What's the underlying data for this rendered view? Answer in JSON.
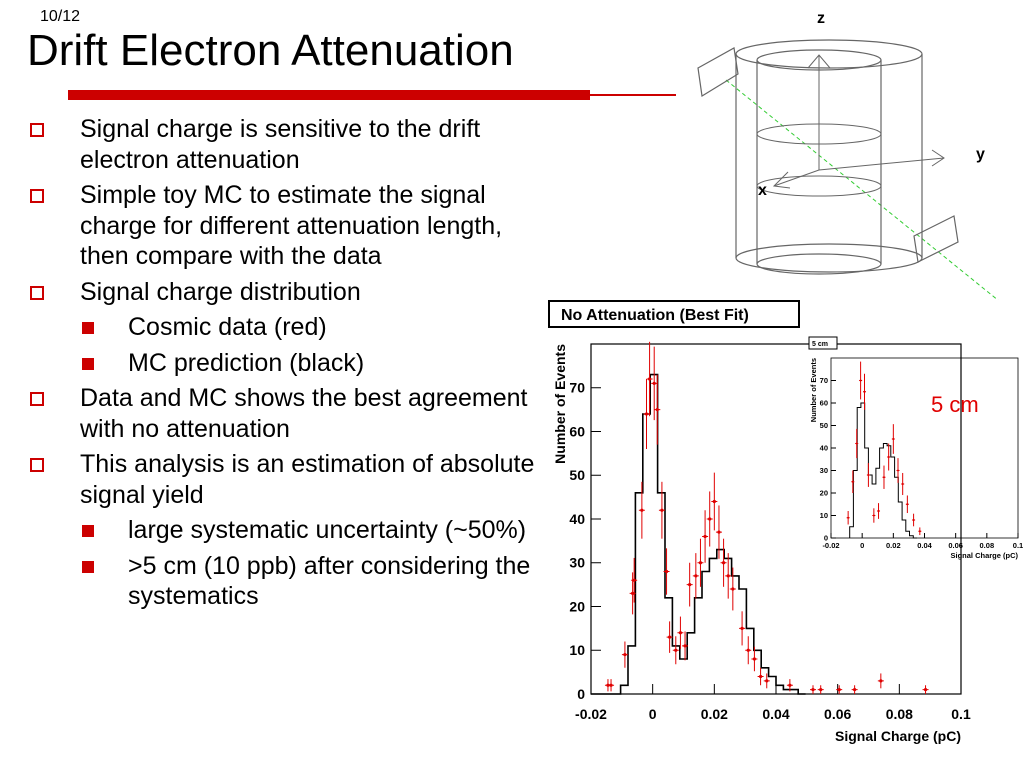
{
  "slide": {
    "page_number": "10/12",
    "title": "Drift Electron Attenuation",
    "bullets": [
      {
        "level": 1,
        "text": "Signal charge is sensitive to the drift electron attenuation"
      },
      {
        "level": 1,
        "text": "Simple toy MC to estimate the signal charge for different attenuation length, then compare with the data"
      },
      {
        "level": 1,
        "text": "Signal charge distribution"
      },
      {
        "level": 2,
        "text": "Cosmic data (red)"
      },
      {
        "level": 2,
        "text": "MC prediction (black)"
      },
      {
        "level": 1,
        "text": "Data and MC shows the best agreement with no attenuation"
      },
      {
        "level": 1,
        "text": "This analysis is an estimation of absolute signal yield"
      },
      {
        "level": 2,
        "text": "large systematic uncertainty (~50%)"
      },
      {
        "level": 2,
        "text": ">5 cm (10 ppb) after considering the systematics"
      }
    ]
  },
  "detector_diagram": {
    "axis_labels": {
      "z": "z",
      "y": "y",
      "x": "x"
    }
  },
  "inset_caption": "5 cm",
  "colors": {
    "accent": "#cc0000",
    "data": "#e00000",
    "mc": "#000000"
  },
  "chart_data": [
    {
      "type": "histogram",
      "title": "No Attenuation (Best Fit)",
      "xlabel": "Signal Charge (pC)",
      "ylabel": "Number of Events",
      "xlim": [
        -0.02,
        0.1
      ],
      "ylim": [
        0,
        80
      ],
      "xticks": [
        "-0.02",
        "0",
        "0.02",
        "0.04",
        "0.06",
        "0.08",
        "0.1"
      ],
      "yticks": [
        "0",
        "10",
        "20",
        "30",
        "40",
        "50",
        "60",
        "70"
      ],
      "grid": false,
      "series": [
        {
          "name": "MC",
          "color": "#000000",
          "style": "step",
          "bin_edges": [
            -0.02,
            -0.0176,
            -0.0152,
            -0.0128,
            -0.0104,
            -0.008,
            -0.0056,
            -0.0032,
            -0.0008,
            0.0016,
            0.004,
            0.0064,
            0.0088,
            0.0112,
            0.0136,
            0.016,
            0.0184,
            0.0208,
            0.0232,
            0.0256,
            0.028,
            0.0304,
            0.0328,
            0.0352,
            0.0376,
            0.04,
            0.0424,
            0.0448,
            0.0472,
            0.0496
          ],
          "values": [
            0,
            0,
            0,
            0,
            2,
            11,
            46,
            64,
            73,
            46,
            22,
            11,
            8,
            14,
            22,
            28,
            31,
            33,
            31,
            27,
            24,
            15,
            10,
            6,
            4,
            2,
            1,
            1,
            0
          ]
        },
        {
          "name": "Cosmic data",
          "color": "#e00000",
          "style": "errorbar",
          "points": [
            {
              "x": -0.0145,
              "y": 2,
              "err": 1.4
            },
            {
              "x": -0.0135,
              "y": 2,
              "err": 1.4
            },
            {
              "x": -0.009,
              "y": 9,
              "err": 3
            },
            {
              "x": -0.0065,
              "y": 23,
              "err": 4.8
            },
            {
              "x": -0.006,
              "y": 26,
              "err": 5.1
            },
            {
              "x": -0.0035,
              "y": 42,
              "err": 6.5
            },
            {
              "x": -0.002,
              "y": 64,
              "err": 8
            },
            {
              "x": -0.001,
              "y": 72,
              "err": 8.5
            },
            {
              "x": 0.0005,
              "y": 71,
              "err": 8.4
            },
            {
              "x": 0.0015,
              "y": 65,
              "err": 8
            },
            {
              "x": 0.003,
              "y": 42,
              "err": 6.5
            },
            {
              "x": 0.0045,
              "y": 28,
              "err": 5.3
            },
            {
              "x": 0.0055,
              "y": 13,
              "err": 3.6
            },
            {
              "x": 0.0075,
              "y": 10,
              "err": 3.2
            },
            {
              "x": 0.009,
              "y": 14,
              "err": 3.7
            },
            {
              "x": 0.0105,
              "y": 11,
              "err": 3.3
            },
            {
              "x": 0.012,
              "y": 25,
              "err": 5
            },
            {
              "x": 0.014,
              "y": 27,
              "err": 5.2
            },
            {
              "x": 0.0155,
              "y": 30,
              "err": 5.5
            },
            {
              "x": 0.017,
              "y": 36,
              "err": 6
            },
            {
              "x": 0.0185,
              "y": 40,
              "err": 6.3
            },
            {
              "x": 0.02,
              "y": 44,
              "err": 6.6
            },
            {
              "x": 0.0215,
              "y": 37,
              "err": 6.1
            },
            {
              "x": 0.023,
              "y": 30,
              "err": 5.5
            },
            {
              "x": 0.0245,
              "y": 27,
              "err": 5.2
            },
            {
              "x": 0.026,
              "y": 24,
              "err": 4.9
            },
            {
              "x": 0.029,
              "y": 15,
              "err": 3.9
            },
            {
              "x": 0.031,
              "y": 10,
              "err": 3.2
            },
            {
              "x": 0.033,
              "y": 8,
              "err": 2.8
            },
            {
              "x": 0.035,
              "y": 4,
              "err": 2
            },
            {
              "x": 0.037,
              "y": 3,
              "err": 1.7
            },
            {
              "x": 0.0445,
              "y": 2,
              "err": 1.4
            },
            {
              "x": 0.052,
              "y": 1,
              "err": 1
            },
            {
              "x": 0.0545,
              "y": 1,
              "err": 1
            },
            {
              "x": 0.0605,
              "y": 1,
              "err": 1
            },
            {
              "x": 0.0655,
              "y": 1,
              "err": 1
            },
            {
              "x": 0.074,
              "y": 3,
              "err": 1.7
            },
            {
              "x": 0.0885,
              "y": 1,
              "err": 1
            }
          ]
        }
      ]
    },
    {
      "type": "histogram",
      "title": "5 cm",
      "xlabel": "Signal Charge (pC)",
      "ylabel": "Number of Events",
      "xlim": [
        -0.02,
        0.1
      ],
      "ylim": [
        0,
        80
      ],
      "xticks": [
        "-0.02",
        "0",
        "0.02",
        "0.04",
        "0.06",
        "0.08",
        "0.1"
      ],
      "yticks": [
        "0",
        "10",
        "20",
        "30",
        "40",
        "50",
        "60",
        "70"
      ],
      "grid": false,
      "series": [
        {
          "name": "MC",
          "color": "#000000",
          "style": "step",
          "bin_edges": [
            -0.008,
            -0.0056,
            -0.0032,
            -0.0008,
            0.0016,
            0.004,
            0.0064,
            0.0088,
            0.0112,
            0.0136,
            0.016,
            0.0184,
            0.0208,
            0.0232,
            0.0256,
            0.028,
            0.0304,
            0.0328,
            0.0352
          ],
          "values": [
            5,
            30,
            58,
            60,
            40,
            28,
            24,
            31,
            40,
            42,
            41,
            36,
            27,
            16,
            8,
            3,
            1,
            0
          ]
        },
        {
          "name": "Cosmic data",
          "color": "#e00000",
          "style": "errorbar",
          "points": [
            {
              "x": -0.009,
              "y": 9,
              "err": 3
            },
            {
              "x": -0.006,
              "y": 25,
              "err": 5
            },
            {
              "x": -0.0035,
              "y": 42,
              "err": 6.5
            },
            {
              "x": -0.001,
              "y": 70,
              "err": 8.4
            },
            {
              "x": 0.0015,
              "y": 65,
              "err": 8
            },
            {
              "x": 0.004,
              "y": 28,
              "err": 5.3
            },
            {
              "x": 0.0075,
              "y": 10,
              "err": 3.2
            },
            {
              "x": 0.0105,
              "y": 12,
              "err": 3.5
            },
            {
              "x": 0.014,
              "y": 27,
              "err": 5.2
            },
            {
              "x": 0.017,
              "y": 36,
              "err": 6
            },
            {
              "x": 0.02,
              "y": 44,
              "err": 6.6
            },
            {
              "x": 0.023,
              "y": 30,
              "err": 5.5
            },
            {
              "x": 0.026,
              "y": 24,
              "err": 4.9
            },
            {
              "x": 0.029,
              "y": 15,
              "err": 3.9
            },
            {
              "x": 0.033,
              "y": 8,
              "err": 2.8
            },
            {
              "x": 0.037,
              "y": 3,
              "err": 1.7
            }
          ]
        }
      ]
    }
  ]
}
